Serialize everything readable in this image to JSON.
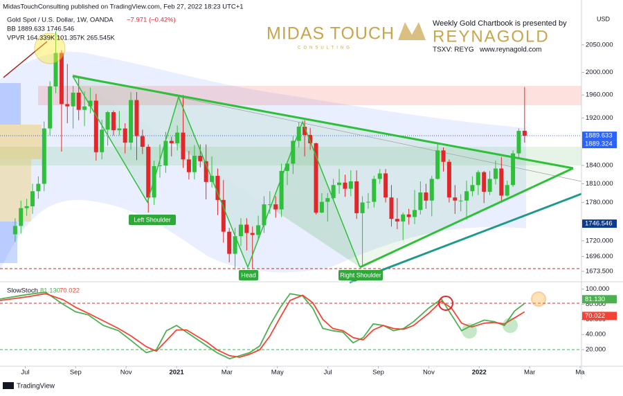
{
  "header": {
    "publisher": "MidasTouchConsulting published on TradingView.com, Feb 27, 2022 18:23 UTC+1",
    "brand": "MIDAS TOUCH",
    "brand_sub": "CONSULTING",
    "sponsor_line": "Weekly Gold Chartbook is presented by",
    "sponsor": "REYNAGOLD",
    "ticker": "TSXV: REYG",
    "website": "www.reynagold.com",
    "footer": "TradingView"
  },
  "chart_data": [
    {
      "type": "candlestick",
      "title": "Gold Spot / U.S. Dollar, 1W, OANDA",
      "change": "−7.971 (−0.42%)",
      "indicators": [
        "BB 1889.633 1746.546",
        "VPVR 164.339K 101.357K 265.545K"
      ],
      "currency": "USD",
      "log": true,
      "up_color": "#2fbf3a",
      "down_color": "#e0282b",
      "annotations": [
        "Left Shoulder",
        "Head",
        "Right Shoulder"
      ],
      "xlim": [
        -1,
        22
      ],
      "xticks": [
        {
          "value": 0,
          "label": "Jul"
        },
        {
          "value": 2,
          "label": "Sep"
        },
        {
          "value": 4,
          "label": "Nov"
        },
        {
          "value": 6,
          "label": "2021"
        },
        {
          "value": 8,
          "label": "Mar"
        },
        {
          "value": 10,
          "label": "May"
        },
        {
          "value": 12,
          "label": "Jul"
        },
        {
          "value": 14,
          "label": "Sep"
        },
        {
          "value": 16,
          "label": "Nov"
        },
        {
          "value": 18,
          "label": "2022"
        },
        {
          "value": 20,
          "label": "Mar"
        },
        {
          "value": 22,
          "label": "Ma"
        }
      ],
      "ylim": [
        1660,
        2134
      ],
      "yticks": [
        {
          "value": 2050,
          "label": "2050.000"
        },
        {
          "value": 2000,
          "label": "2000.000"
        },
        {
          "value": 1960,
          "label": "1960.000"
        },
        {
          "value": 1920,
          "label": "1920.000"
        },
        {
          "value": 1840,
          "label": "1840.000"
        },
        {
          "value": 1810,
          "label": "1810.000"
        },
        {
          "value": 1780,
          "label": "1780.000"
        },
        {
          "value": 1720,
          "label": "1720.000"
        },
        {
          "value": 1696,
          "label": "1696.000"
        },
        {
          "value": 1673.5,
          "label": "1673.500"
        }
      ],
      "price_labels": [
        {
          "value": 1889.633,
          "color": "#2962ff"
        },
        {
          "value": 1889.324,
          "color": "#2962ff"
        },
        {
          "value": 1746.546,
          "color": "#0d3a8a"
        }
      ],
      "x": [
        -0.4,
        -0.17,
        0.06,
        0.29,
        0.52,
        0.75,
        0.98,
        1.21,
        1.44,
        1.67,
        1.9,
        2.12,
        2.35,
        2.58,
        2.81,
        3.04,
        3.27,
        3.5,
        3.73,
        3.96,
        4.19,
        4.42,
        4.65,
        4.88,
        5.11,
        5.34,
        5.57,
        5.8,
        6.03,
        6.26,
        6.49,
        6.71,
        6.94,
        7.17,
        7.4,
        7.63,
        7.86,
        8.09,
        8.32,
        8.55,
        8.78,
        9.01,
        9.24,
        9.47,
        9.7,
        9.93,
        10.16,
        10.39,
        10.62,
        10.85,
        11.08,
        11.3,
        11.53,
        11.76,
        11.99,
        12.22,
        12.45,
        12.68,
        12.91,
        13.14,
        13.37,
        13.6,
        13.83,
        14.06,
        14.29,
        14.52,
        14.75,
        14.98,
        15.21,
        15.44,
        15.67,
        15.89,
        16.12,
        16.35,
        16.58,
        16.81,
        17.04,
        17.27,
        17.5,
        17.73,
        17.96,
        18.19,
        18.42,
        18.65,
        18.88,
        19.11,
        19.34,
        19.57,
        19.8
      ],
      "open": [
        1730,
        1743,
        1771,
        1774,
        1798,
        1810,
        1902,
        1975,
        2035,
        1944,
        1940,
        1964,
        1934,
        1940,
        1950,
        1862,
        1900,
        1930,
        1899,
        1902,
        1878,
        1951,
        1889,
        1871,
        1788,
        1839,
        1840,
        1881,
        1877,
        1895,
        1850,
        1829,
        1856,
        1847,
        1813,
        1823,
        1784,
        1734,
        1700,
        1727,
        1745,
        1732,
        1729,
        1744,
        1777,
        1777,
        1769,
        1831,
        1843,
        1881,
        1905,
        1891,
        1877,
        1764,
        1781,
        1787,
        1808,
        1812,
        1802,
        1814,
        1763,
        1780,
        1781,
        1818,
        1827,
        1788,
        1754,
        1750,
        1761,
        1757,
        1768,
        1796,
        1783,
        1818,
        1865,
        1846,
        1788,
        1783,
        1783,
        1798,
        1808,
        1829,
        1797,
        1818,
        1835,
        1791,
        1808,
        1860,
        1898
      ],
      "high": [
        1755,
        1783,
        1786,
        1810,
        1822,
        1914,
        1984,
        2075,
        2040,
        2015,
        1976,
        1992,
        1966,
        1973,
        1962,
        1917,
        1932,
        1933,
        1932,
        1911,
        1965,
        1965,
        1900,
        1875,
        1848,
        1875,
        1896,
        1888,
        1907,
        1960,
        1864,
        1874,
        1875,
        1875,
        1855,
        1835,
        1816,
        1740,
        1740,
        1755,
        1755,
        1742,
        1759,
        1790,
        1798,
        1790,
        1843,
        1846,
        1890,
        1913,
        1916,
        1903,
        1878,
        1795,
        1795,
        1818,
        1834,
        1825,
        1832,
        1832,
        1790,
        1795,
        1823,
        1834,
        1834,
        1808,
        1787,
        1764,
        1770,
        1800,
        1814,
        1810,
        1823,
        1877,
        1870,
        1850,
        1808,
        1793,
        1815,
        1822,
        1832,
        1831,
        1831,
        1848,
        1854,
        1815,
        1865,
        1902,
        1974
      ],
      "low": [
        1718,
        1731,
        1759,
        1762,
        1786,
        1798,
        1890,
        1963,
        1863,
        1911,
        1902,
        1916,
        1906,
        1928,
        1848,
        1850,
        1873,
        1890,
        1890,
        1860,
        1866,
        1849,
        1859,
        1764,
        1776,
        1820,
        1828,
        1855,
        1865,
        1836,
        1817,
        1817,
        1837,
        1785,
        1804,
        1760,
        1717,
        1687,
        1676,
        1712,
        1705,
        1677,
        1723,
        1732,
        1762,
        1756,
        1757,
        1808,
        1826,
        1870,
        1855,
        1866,
        1761,
        1763,
        1750,
        1784,
        1794,
        1789,
        1790,
        1754,
        1682,
        1770,
        1772,
        1810,
        1780,
        1742,
        1738,
        1721,
        1745,
        1746,
        1761,
        1770,
        1758,
        1817,
        1830,
        1780,
        1762,
        1766,
        1753,
        1790,
        1792,
        1779,
        1792,
        1809,
        1780,
        1789,
        1805,
        1852,
        1878
      ],
      "close": [
        1743,
        1771,
        1774,
        1798,
        1810,
        1902,
        1975,
        2035,
        1944,
        1940,
        1964,
        1934,
        1940,
        1950,
        1862,
        1900,
        1930,
        1899,
        1902,
        1878,
        1951,
        1889,
        1871,
        1788,
        1839,
        1840,
        1881,
        1877,
        1895,
        1850,
        1829,
        1856,
        1847,
        1813,
        1823,
        1784,
        1734,
        1700,
        1727,
        1745,
        1732,
        1729,
        1744,
        1777,
        1777,
        1769,
        1831,
        1843,
        1881,
        1905,
        1891,
        1877,
        1764,
        1781,
        1787,
        1808,
        1812,
        1802,
        1814,
        1763,
        1780,
        1781,
        1818,
        1827,
        1788,
        1754,
        1750,
        1761,
        1757,
        1768,
        1796,
        1783,
        1818,
        1865,
        1846,
        1788,
        1783,
        1783,
        1798,
        1808,
        1829,
        1797,
        1818,
        1835,
        1791,
        1808,
        1860,
        1898,
        1889.633
      ]
    },
    {
      "type": "line",
      "title": "SlowStoch",
      "xlim": [
        -1,
        22
      ],
      "ylim": [
        -1,
        107
      ],
      "yticks": [
        {
          "value": 100,
          "label": "100.000"
        },
        {
          "value": 80,
          "label": "80.000"
        },
        {
          "value": 60,
          "label": "60.000"
        },
        {
          "value": 40,
          "label": "40.000"
        },
        {
          "value": 20,
          "label": "20.000"
        }
      ],
      "x": [
        -1.0,
        0.1,
        0.8,
        1.5,
        2.0,
        2.5,
        3.1,
        3.7,
        4.2,
        4.8,
        5.2,
        5.6,
        6.0,
        6.4,
        6.8,
        7.2,
        7.6,
        8.1,
        8.5,
        8.9,
        9.3,
        9.7,
        10.1,
        10.5,
        11.0,
        11.4,
        11.8,
        12.2,
        12.6,
        13.0,
        13.4,
        13.8,
        14.2,
        14.6,
        15.0,
        15.4,
        16.0,
        16.5,
        16.9,
        17.3,
        17.7,
        18.2,
        18.6,
        19.0,
        19.4,
        19.8
      ],
      "series": [
        {
          "color": "#4caf50",
          "last_label": "81.130",
          "values": [
            87,
            93,
            96,
            80,
            70,
            66,
            52,
            45,
            32,
            16,
            20,
            45,
            52,
            43,
            34,
            25,
            16,
            8,
            12,
            16,
            25,
            52,
            75,
            94,
            91,
            75,
            48,
            45,
            43,
            29,
            36,
            54,
            52,
            45,
            48,
            57,
            75,
            87,
            66,
            45,
            52,
            59,
            57,
            52,
            71,
            81.13
          ]
        },
        {
          "color": "#f44336",
          "last_label": "70.022",
          "values": [
            85,
            90,
            94,
            86,
            76,
            68,
            58,
            48,
            38,
            24,
            18,
            32,
            46,
            46,
            38,
            30,
            20,
            12,
            10,
            14,
            20,
            38,
            62,
            85,
            92,
            82,
            60,
            48,
            45,
            36,
            33,
            46,
            52,
            48,
            47,
            52,
            68,
            84,
            75,
            55,
            50,
            55,
            56,
            54,
            62,
            70.022
          ]
        }
      ]
    }
  ]
}
